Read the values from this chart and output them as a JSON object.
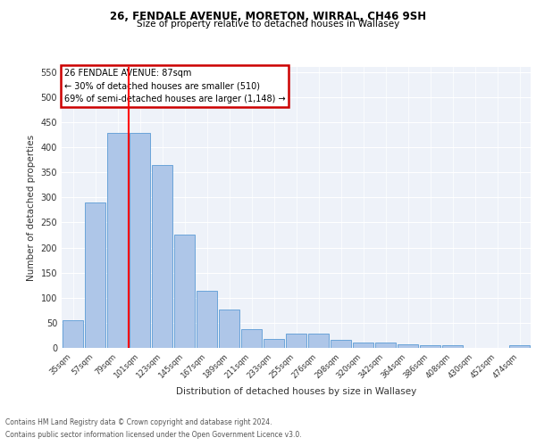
{
  "title1": "26, FENDALE AVENUE, MORETON, WIRRAL, CH46 9SH",
  "title2": "Size of property relative to detached houses in Wallasey",
  "xlabel": "Distribution of detached houses by size in Wallasey",
  "ylabel": "Number of detached properties",
  "footnote1": "Contains HM Land Registry data © Crown copyright and database right 2024.",
  "footnote2": "Contains public sector information licensed under the Open Government Licence v3.0.",
  "annotation_line1": "26 FENDALE AVENUE: 87sqm",
  "annotation_line2": "← 30% of detached houses are smaller (510)",
  "annotation_line3": "69% of semi-detached houses are larger (1,148) →",
  "bar_labels": [
    "35sqm",
    "57sqm",
    "79sqm",
    "101sqm",
    "123sqm",
    "145sqm",
    "167sqm",
    "189sqm",
    "211sqm",
    "233sqm",
    "255sqm",
    "276sqm",
    "298sqm",
    "320sqm",
    "342sqm",
    "364sqm",
    "386sqm",
    "408sqm",
    "430sqm",
    "452sqm",
    "474sqm"
  ],
  "bar_values": [
    55,
    290,
    428,
    428,
    365,
    225,
    113,
    76,
    38,
    18,
    28,
    28,
    16,
    10,
    10,
    8,
    5,
    5,
    0,
    0,
    5
  ],
  "bar_color": "#aec6e8",
  "bar_edge_color": "#5b9bd5",
  "red_line_x": 2.5,
  "ylim": [
    0,
    560
  ],
  "yticks": [
    0,
    50,
    100,
    150,
    200,
    250,
    300,
    350,
    400,
    450,
    500,
    550
  ],
  "bg_color": "#eef2f9",
  "annotation_box_color": "#cc0000"
}
